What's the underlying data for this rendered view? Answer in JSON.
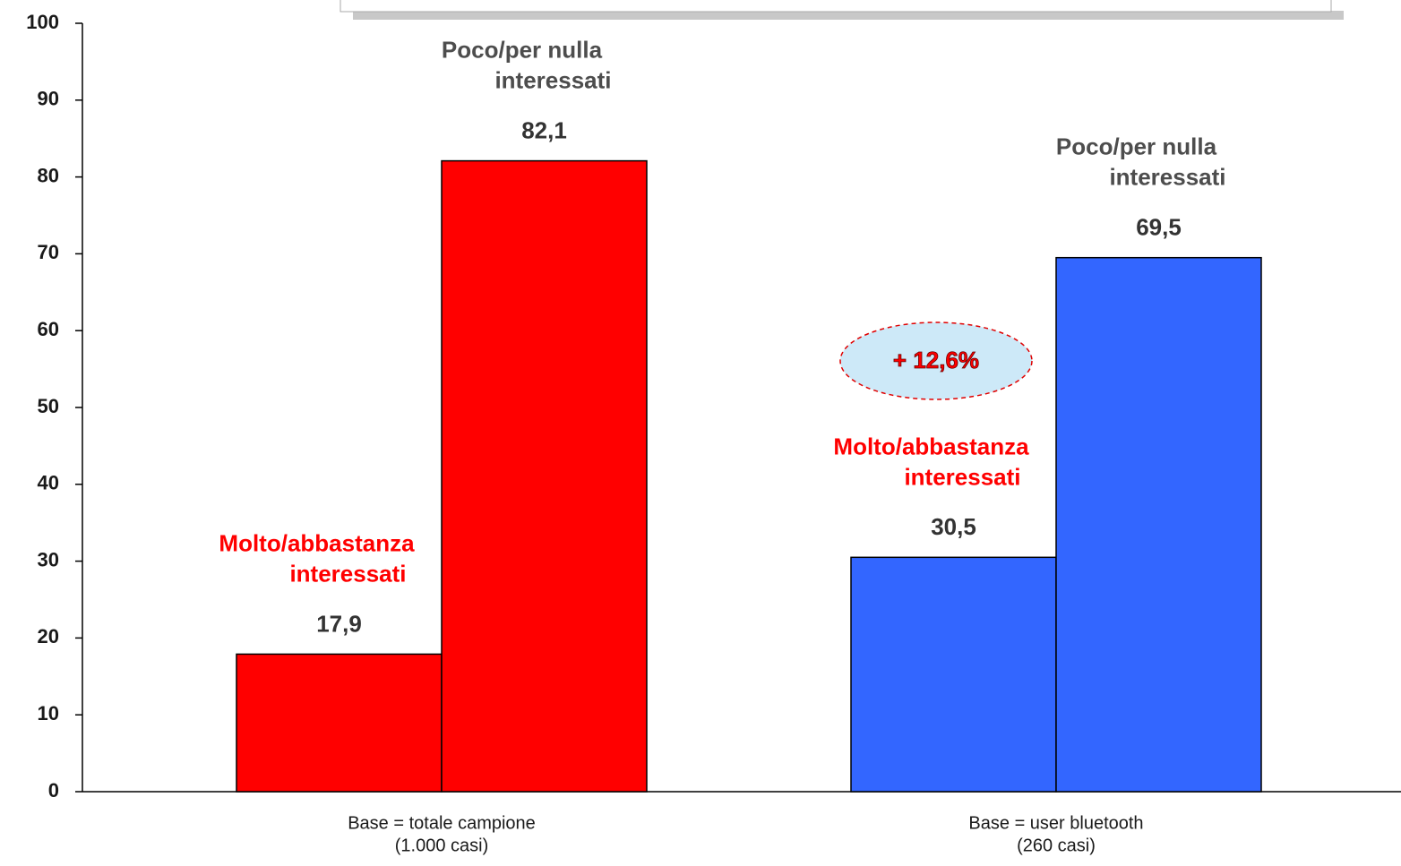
{
  "chart_data": {
    "type": "bar",
    "categories": [
      [
        "Base = totale campione",
        "(1.000 casi)"
      ],
      [
        "Base = user bluetooth",
        "(260 casi)"
      ]
    ],
    "category_colors": [
      "#ff0000",
      "#3366ff"
    ],
    "series": [
      {
        "name": "Molto/abbastanza interessati",
        "label_color": "#ff0000",
        "values": [
          17.9,
          30.5
        ],
        "value_labels": [
          "17,9",
          "30,5"
        ]
      },
      {
        "name": "Poco/per nulla interessati",
        "label_color": "#4d4d4d",
        "values": [
          82.1,
          69.5
        ],
        "value_labels": [
          "82,1",
          "69,5"
        ]
      }
    ],
    "annotation": "+ 12,6%",
    "ylim": [
      0,
      100
    ],
    "yticks": [
      0,
      10,
      20,
      30,
      40,
      50,
      60,
      70,
      80,
      90,
      100
    ]
  }
}
